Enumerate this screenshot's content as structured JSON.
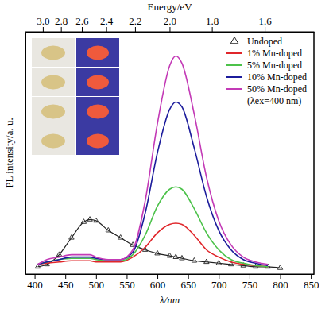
{
  "chart_data": {
    "type": "line",
    "x_label": "λ/nm",
    "y_label": "PL intensity/a. u.",
    "x2_label": "Energy/eV",
    "annotation": "(λex=400 nm)",
    "x": [
      405,
      420,
      440,
      460,
      480,
      490,
      500,
      520,
      540,
      560,
      580,
      600,
      620,
      630,
      640,
      660,
      680,
      700,
      720,
      740,
      760,
      780,
      800
    ],
    "series": [
      {
        "name": "Undoped",
        "color": "#222222",
        "marker": "triangle",
        "values": [
          0.03,
          0.04,
          0.08,
          0.15,
          0.215,
          0.225,
          0.22,
          0.18,
          0.15,
          0.12,
          0.1,
          0.085,
          0.075,
          0.07,
          0.065,
          0.055,
          0.05,
          0.045,
          0.04,
          0.035,
          0.03,
          0.03,
          0.025
        ]
      },
      {
        "name": "1% Mn-doped",
        "color": "#e0262b",
        "values": [
          0.04,
          0.045,
          0.05,
          0.055,
          0.055,
          0.055,
          0.05,
          0.05,
          0.05,
          0.07,
          0.11,
          0.17,
          0.205,
          0.21,
          0.205,
          0.16,
          0.1,
          0.07,
          0.05,
          0.04,
          0.035,
          0.03,
          null
        ]
      },
      {
        "name": "5% Mn-doped",
        "color": "#4cc24a",
        "values": [
          0.04,
          0.05,
          0.06,
          0.065,
          0.065,
          0.065,
          0.06,
          0.055,
          0.055,
          0.08,
          0.16,
          0.28,
          0.35,
          0.36,
          0.35,
          0.27,
          0.17,
          0.1,
          0.06,
          0.045,
          0.035,
          0.03,
          null
        ]
      },
      {
        "name": "10% Mn-doped",
        "color": "#1c1c9c",
        "values": [
          0.04,
          0.05,
          0.06,
          0.07,
          0.07,
          0.07,
          0.065,
          0.06,
          0.06,
          0.09,
          0.25,
          0.5,
          0.68,
          0.71,
          0.69,
          0.52,
          0.32,
          0.18,
          0.1,
          0.06,
          0.045,
          0.035,
          null
        ]
      },
      {
        "name": "50% Mn-doped",
        "color": "#c33ab6",
        "values": [
          0.04,
          0.06,
          0.07,
          0.08,
          0.08,
          0.08,
          0.07,
          0.06,
          0.06,
          0.1,
          0.3,
          0.62,
          0.86,
          0.9,
          0.87,
          0.66,
          0.4,
          0.22,
          0.12,
          0.07,
          0.05,
          0.04,
          null
        ]
      }
    ],
    "xlim": [
      385,
      855
    ],
    "xticks": [
      400,
      450,
      500,
      550,
      600,
      650,
      700,
      750,
      800,
      850
    ],
    "x2lim": [
      3.221,
      1.45
    ],
    "x2ticks": [
      {
        "value": 3.0,
        "label": "3.0"
      },
      {
        "value": 2.8,
        "label": "2.8"
      },
      {
        "value": 2.6,
        "label": "2.6"
      },
      {
        "value": 2.4,
        "label": "2.4"
      },
      {
        "value": 2.2,
        "label": "2.2"
      },
      {
        "value": 2.0,
        "label": "2.0"
      },
      {
        "value": 1.8,
        "label": "1.8"
      },
      {
        "value": 1.6,
        "label": "1.6"
      }
    ],
    "ylim": [
      0,
      1
    ],
    "tick_labels": "x",
    "grid": false,
    "legend": "top-right"
  }
}
